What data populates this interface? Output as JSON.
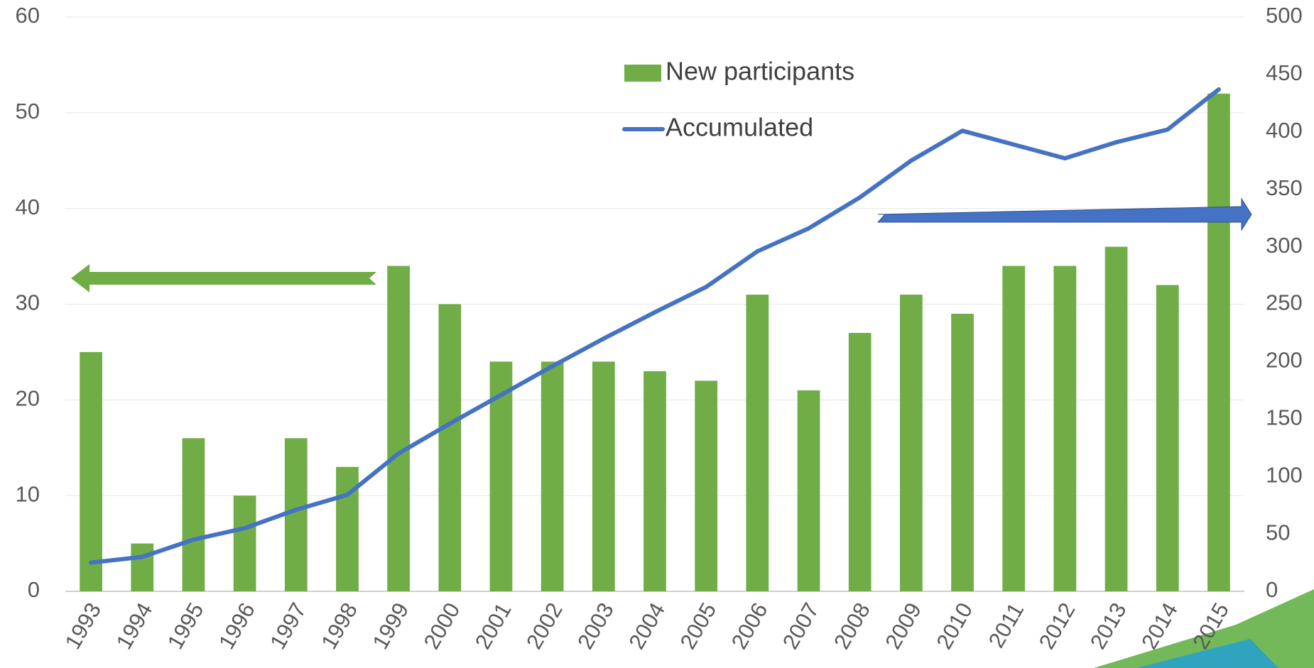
{
  "chart_data": {
    "type": "bar",
    "categories": [
      "1993",
      "1994",
      "1995",
      "1996",
      "1997",
      "1998",
      "1999",
      "2000",
      "2001",
      "2002",
      "2003",
      "2004",
      "2005",
      "2006",
      "2007",
      "2008",
      "2009",
      "2010",
      "2011",
      "2012",
      "2013",
      "2014",
      "2015"
    ],
    "series": [
      {
        "name": "New participants",
        "type": "bar",
        "color": "#70ad47",
        "values": [
          25,
          5,
          16,
          10,
          16,
          13,
          34,
          30,
          24,
          24,
          24,
          23,
          22,
          31,
          21,
          27,
          31,
          29,
          34,
          34,
          36,
          32,
          52
        ]
      },
      {
        "name": "Accumulated",
        "type": "line",
        "axis": "y2",
        "color": "#4472c4",
        "values": [
          25,
          30,
          45,
          55,
          71,
          84,
          120,
          146,
          171,
          196,
          220,
          243,
          265,
          296,
          316,
          343,
          375,
          401,
          389,
          377,
          391,
          402,
          437
        ]
      }
    ],
    "ylim": [
      0,
      60
    ],
    "yticks": [
      0,
      10,
      20,
      30,
      40,
      50,
      60
    ],
    "y2lim": [
      0,
      500
    ],
    "y2ticks": [
      0,
      50,
      100,
      150,
      200,
      250,
      300,
      350,
      400,
      450,
      500
    ],
    "grid": true,
    "legend": "top"
  }
}
